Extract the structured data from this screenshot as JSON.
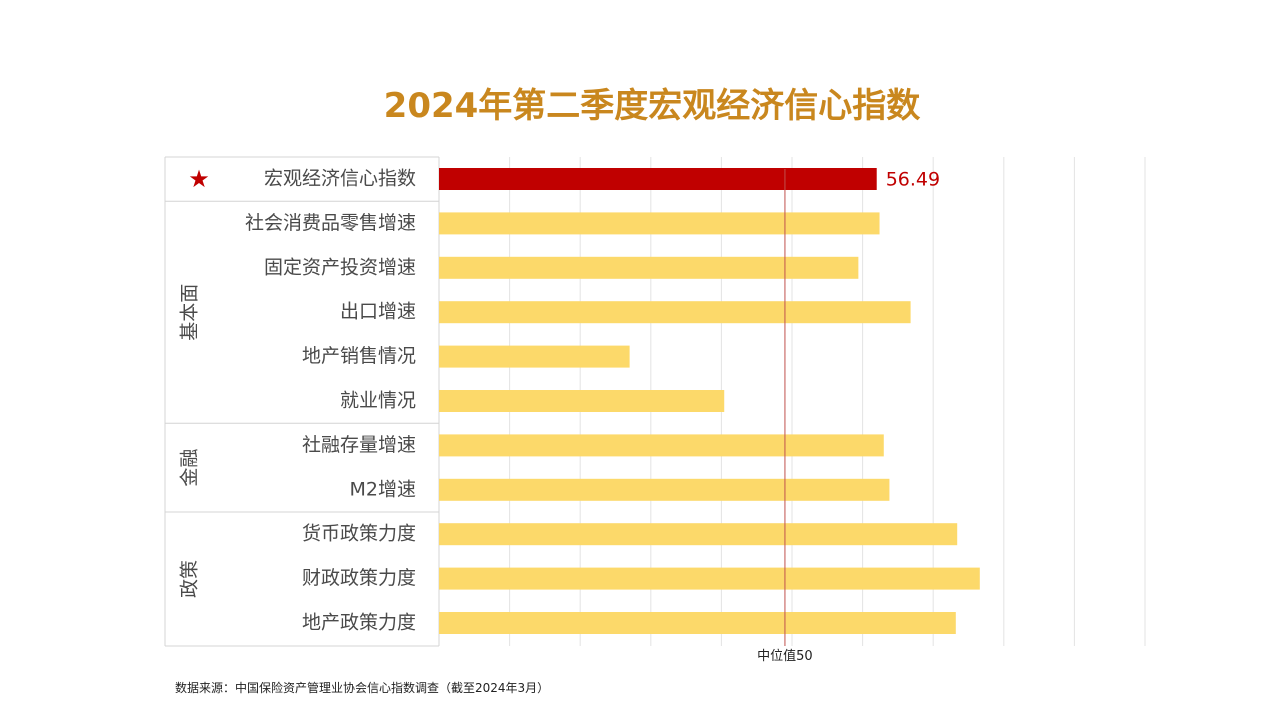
{
  "chart_data": {
    "type": "bar",
    "orientation": "horizontal",
    "title": "2024年第二季度宏观经济信心指数",
    "categories": [
      "宏观经济信心指数",
      "社会消费品零售增速",
      "固定资产投资增速",
      "出口增速",
      "地产销售情况",
      "就业情况",
      "社融存量增速",
      "M2增速",
      "货币政策力度",
      "财政政策力度",
      "地产政策力度"
    ],
    "values": [
      56.5,
      56.7,
      55.2,
      58.9,
      39.0,
      45.7,
      57.0,
      57.4,
      62.2,
      63.8,
      62.1
    ],
    "highlight": {
      "category": "宏观经济信心指数",
      "marker": "★",
      "value_label": "56.49",
      "color": "#c00000"
    },
    "bar_color": "#fcd96a",
    "xlim": [
      25.5,
      75.5
    ],
    "grid": true,
    "groups": [
      {
        "label": "基本面",
        "categories": [
          "社会消费品零售增速",
          "固定资产投资增速",
          "出口增速",
          "地产销售情况",
          "就业情况"
        ]
      },
      {
        "label": "金融",
        "categories": [
          "社融存量增速",
          "M2增速"
        ]
      },
      {
        "label": "政策",
        "categories": [
          "货币政策力度",
          "财政政策力度",
          "地产政策力度"
        ]
      }
    ],
    "reference_line": {
      "value": 50,
      "label": "中位值50",
      "color": "#c0504d"
    }
  },
  "source_note": "数据来源：中国保险资产管理业协会信心指数调查（截至2024年3月）"
}
